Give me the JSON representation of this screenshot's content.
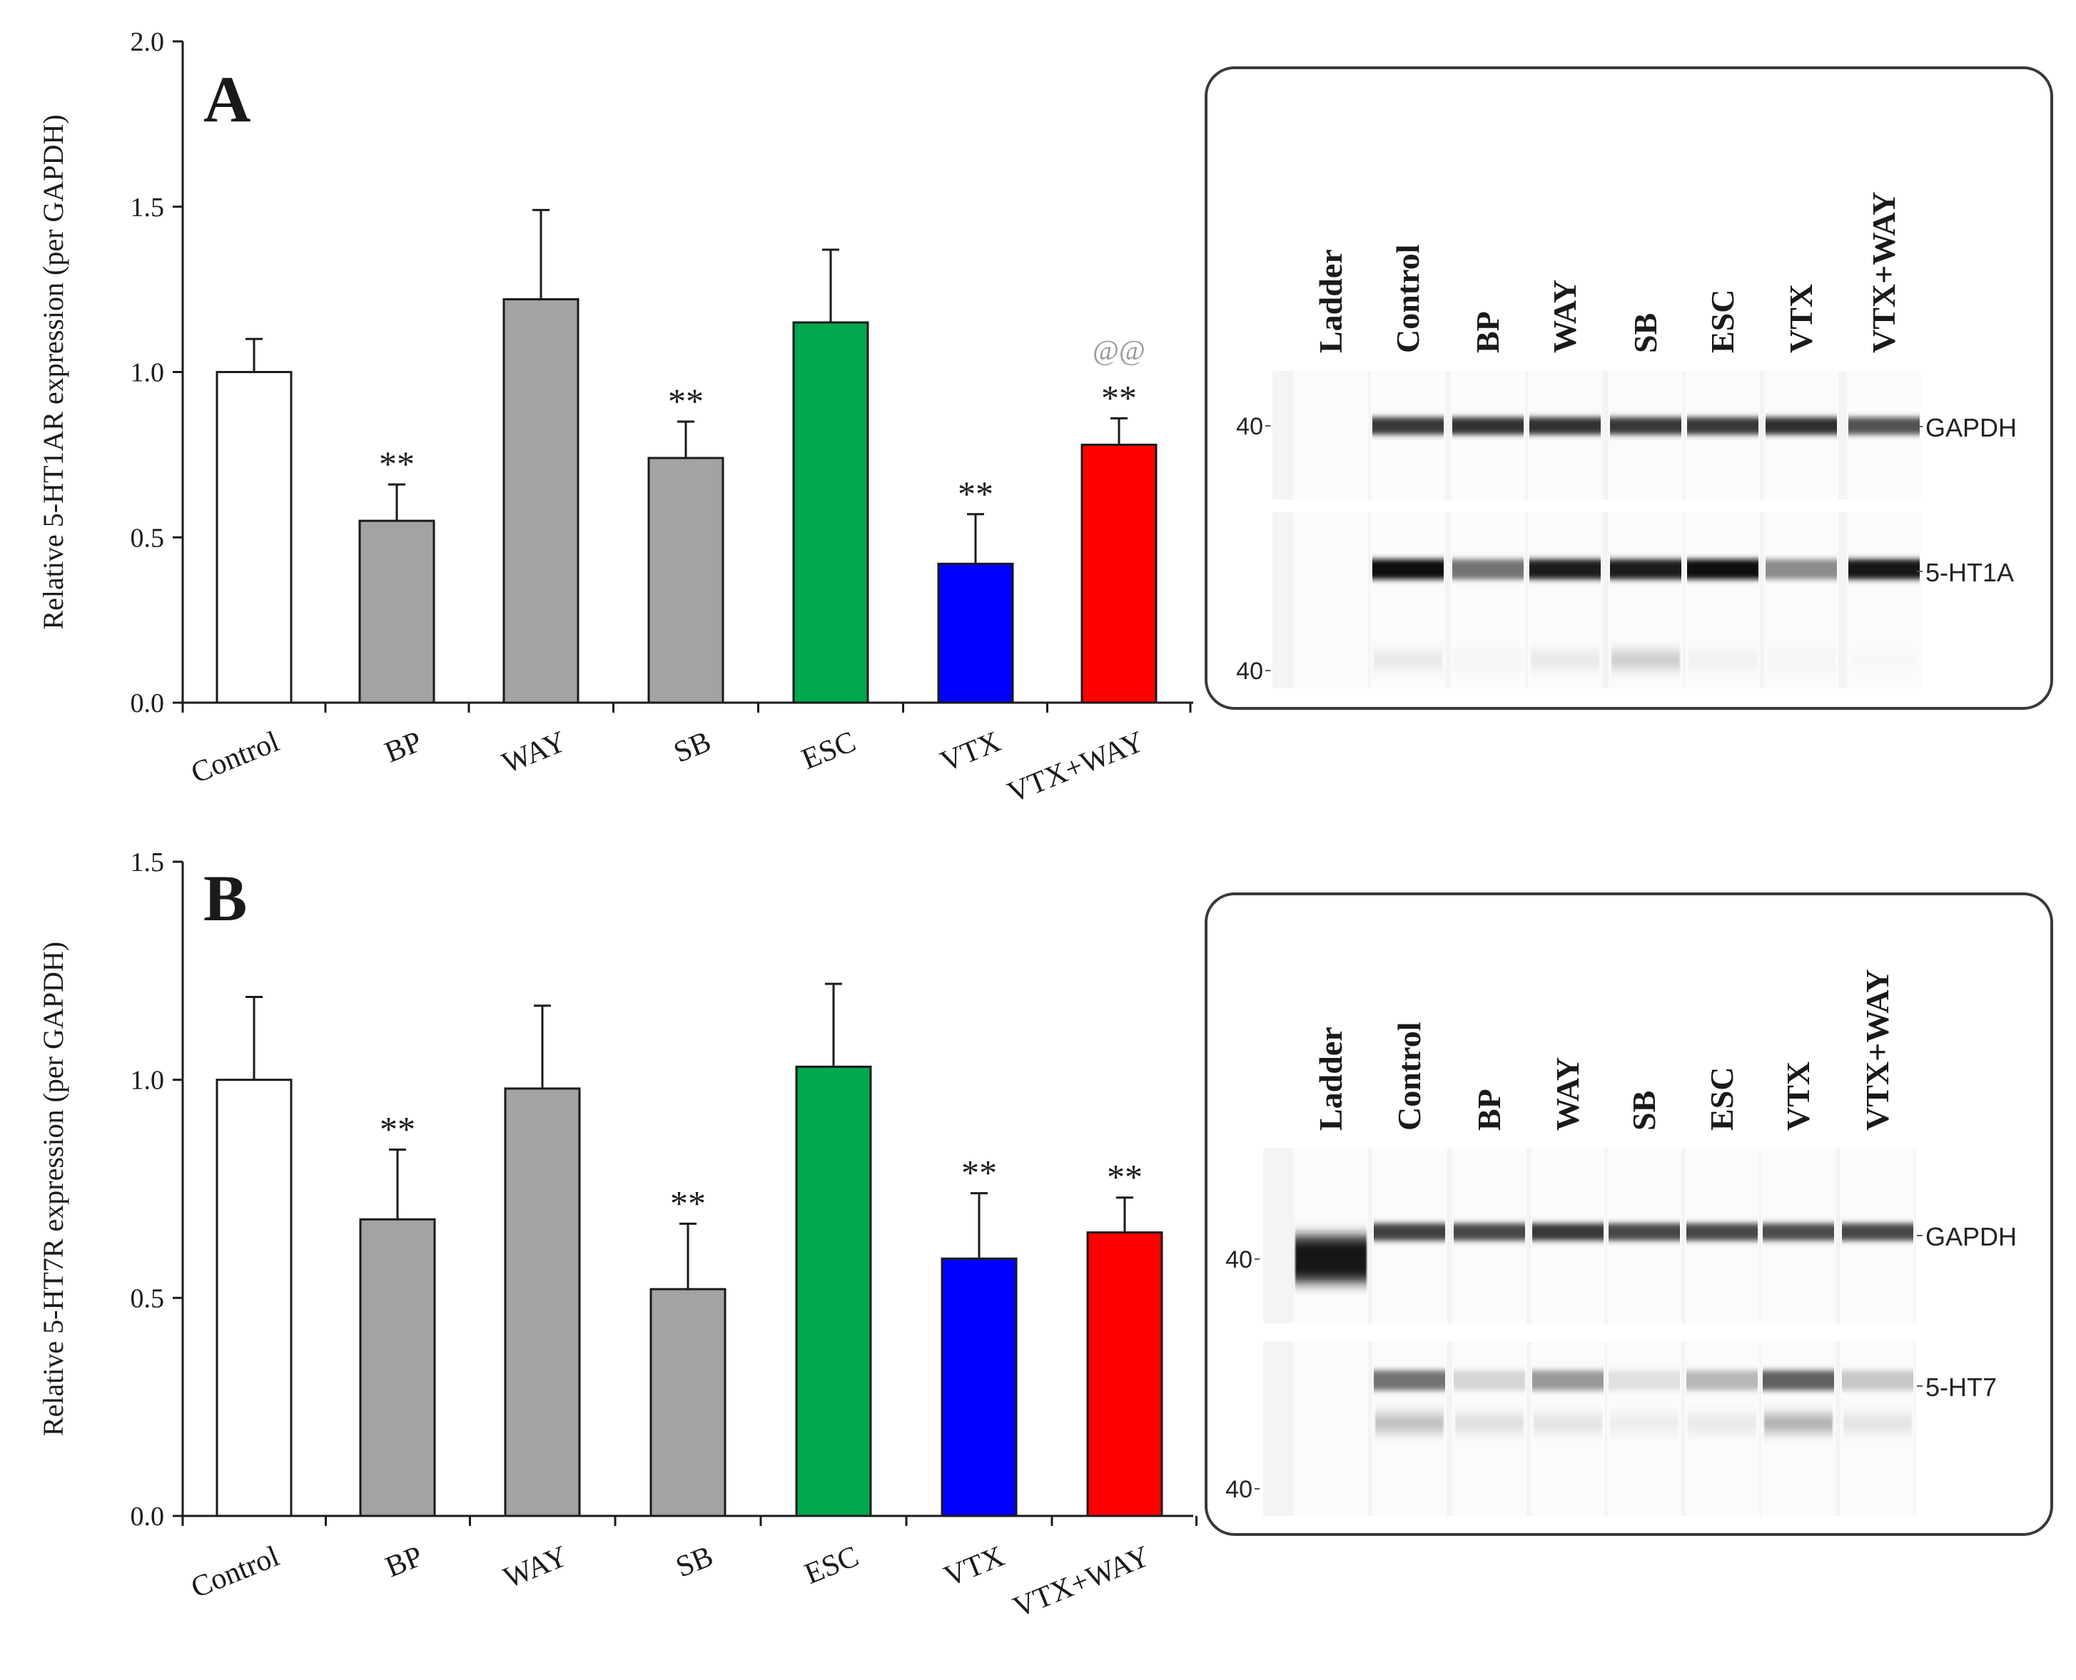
{
  "colors": {
    "control": "#ffffff",
    "gray": "#a3a3a3",
    "esc": "#00a84f",
    "vtx": "#0000ff",
    "vtx_way": "#ff0000",
    "axis": "#1a1a1a"
  },
  "chart_data": [
    {
      "type": "bar",
      "panel_label": "A",
      "title": "",
      "ylabel": "Relative  5-HT1AR  expression (per GAPDH)",
      "xlabel": "",
      "categories": [
        "Control",
        "BP",
        "WAY",
        "SB",
        "ESC",
        "VTX",
        "VTX+WAY"
      ],
      "values": [
        1.0,
        0.55,
        1.22,
        0.74,
        1.15,
        0.42,
        0.78
      ],
      "errors": [
        0.1,
        0.11,
        0.27,
        0.11,
        0.22,
        0.15,
        0.08
      ],
      "annotations": [
        "",
        "**",
        "",
        "**",
        "",
        "**",
        "**"
      ],
      "extra_annotations": [
        "",
        "",
        "",
        "",
        "",
        "",
        "@@"
      ],
      "bar_colors": [
        "control",
        "gray",
        "gray",
        "gray",
        "esc",
        "vtx",
        "vtx_way"
      ],
      "ylim": [
        0,
        2.0
      ],
      "yticks": [
        "0.0",
        "0.5",
        "1.0",
        "1.5",
        "2.0"
      ],
      "legend": "none",
      "grid": false
    },
    {
      "type": "bar",
      "panel_label": "B",
      "title": "",
      "ylabel": "Relative  5-HT7R  expression (per GAPDH)",
      "xlabel": "",
      "categories": [
        "Control",
        "BP",
        "WAY",
        "SB",
        "ESC",
        "VTX",
        "VTX+WAY"
      ],
      "values": [
        1.0,
        0.68,
        0.98,
        0.52,
        1.03,
        0.59,
        0.65
      ],
      "errors": [
        0.19,
        0.16,
        0.19,
        0.15,
        0.19,
        0.15,
        0.08
      ],
      "annotations": [
        "",
        "**",
        "",
        "**",
        "",
        "**",
        "**"
      ],
      "extra_annotations": [
        "",
        "",
        "",
        "",
        "",
        "",
        ""
      ],
      "bar_colors": [
        "control",
        "gray",
        "gray",
        "gray",
        "esc",
        "vtx",
        "vtx_way"
      ],
      "ylim": [
        0,
        1.5
      ],
      "yticks": [
        "0.0",
        "0.5",
        "1.0",
        "1.5"
      ],
      "legend": "none",
      "grid": false
    }
  ],
  "blots": [
    {
      "lanes": [
        "Ladder",
        "Control",
        "BP",
        "WAY",
        "SB",
        "ESC",
        "VTX",
        "VTX+WAY"
      ],
      "top_marker": "40",
      "bottom_marker": "40",
      "top_label": "GAPDH",
      "bottom_label": "5-HT1A",
      "top_intensity": [
        0,
        0.78,
        0.8,
        0.8,
        0.78,
        0.78,
        0.82,
        0.68
      ],
      "bottom_intensity": [
        0,
        0.95,
        0.55,
        0.88,
        0.88,
        0.95,
        0.45,
        0.92
      ],
      "ladder_band": 0,
      "bottom_faint": [
        0,
        0.1,
        0.04,
        0.1,
        0.22,
        0.06,
        0.04,
        0.03
      ]
    },
    {
      "lanes": [
        "Ladder",
        "Control",
        "BP",
        "WAY",
        "SB",
        "ESC",
        "VTX",
        "VTX+WAY"
      ],
      "top_marker": "40",
      "bottom_marker": "40",
      "top_label": "GAPDH",
      "bottom_label": "5-HT7",
      "top_intensity": [
        0,
        0.75,
        0.72,
        0.78,
        0.72,
        0.72,
        0.7,
        0.72
      ],
      "bottom_intensity": [
        0,
        0.55,
        0.16,
        0.4,
        0.12,
        0.28,
        0.62,
        0.22
      ],
      "ladder_band": 0.92,
      "bottom_faint": [
        0,
        0.28,
        0.14,
        0.12,
        0.08,
        0.1,
        0.35,
        0.12
      ]
    }
  ]
}
